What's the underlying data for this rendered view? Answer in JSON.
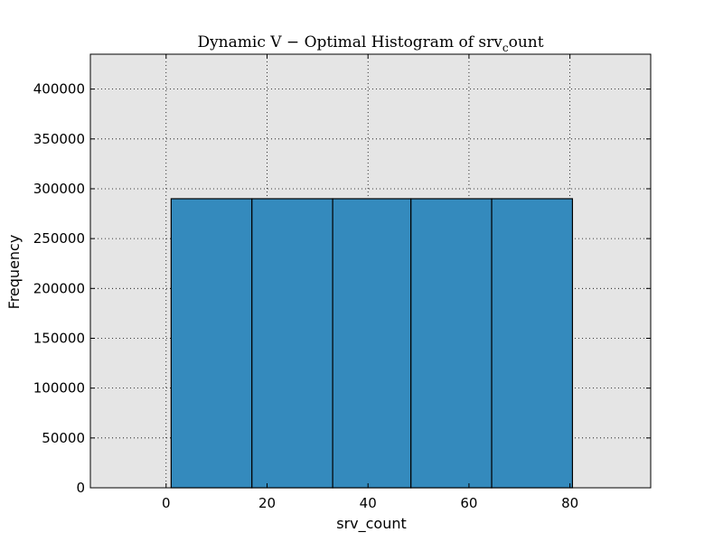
{
  "chart_data": {
    "type": "bar",
    "title_main": "Dynamic V − Optimal Histogram of srv",
    "title_sub": "c",
    "title_tail": "ount",
    "xlabel": "srv_count",
    "ylabel": "Frequency",
    "xlim": [
      -15,
      96
    ],
    "ylim": [
      0,
      435000
    ],
    "xticks": [
      0,
      20,
      40,
      60,
      80
    ],
    "yticks": [
      0,
      50000,
      100000,
      150000,
      200000,
      250000,
      300000,
      350000,
      400000
    ],
    "grid": true,
    "bar_color": "#348abd",
    "background_color": "#e5e5e5",
    "bins": [
      {
        "x0": 1,
        "x1": 17,
        "value": 290000
      },
      {
        "x0": 17,
        "x1": 33,
        "value": 290000
      },
      {
        "x0": 33,
        "x1": 48.5,
        "value": 290000
      },
      {
        "x0": 48.5,
        "x1": 64.5,
        "value": 290000
      },
      {
        "x0": 64.5,
        "x1": 80.5,
        "value": 290000
      }
    ]
  }
}
